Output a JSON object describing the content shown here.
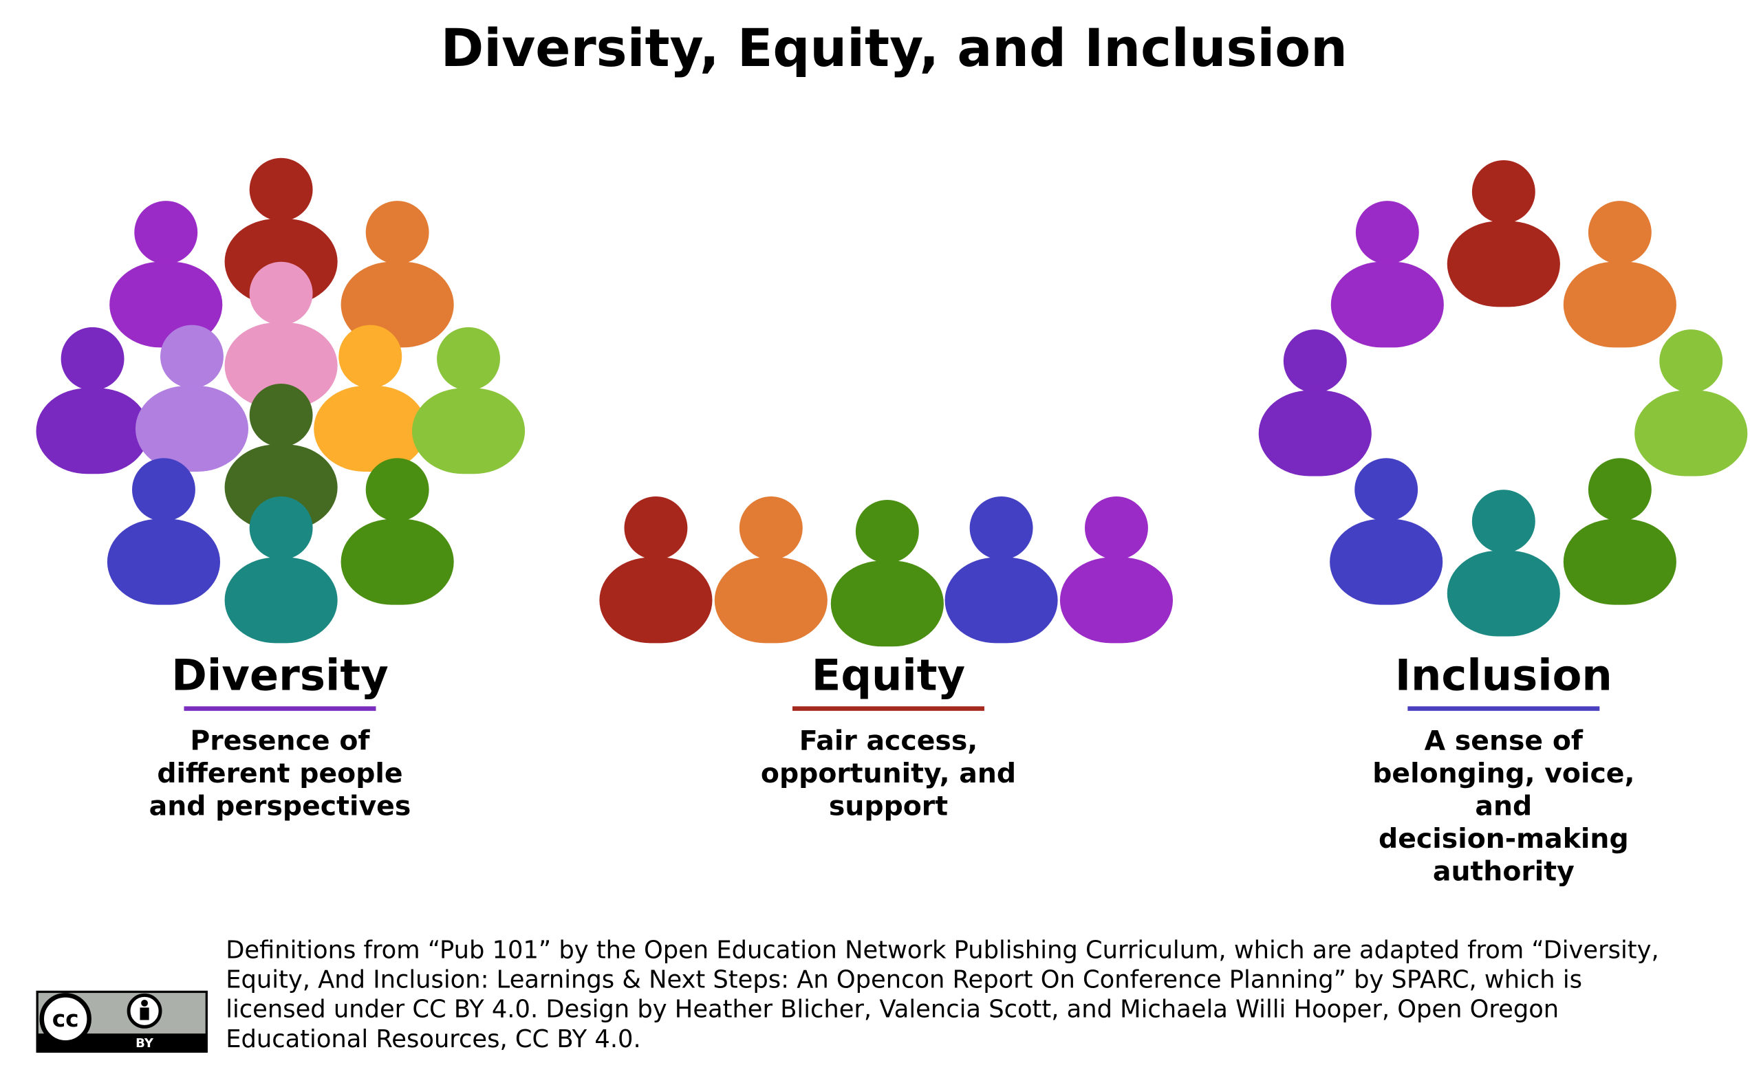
{
  "title": "Diversity, Equity, and Inclusion",
  "sections": [
    {
      "heading": "Diversity",
      "description": [
        "Presence of",
        "different people",
        "and perspectives"
      ]
    },
    {
      "heading": "Equity",
      "description": [
        "Fair access,",
        "opportunity, and",
        "support"
      ]
    },
    {
      "heading": "Inclusion",
      "description": [
        "A sense of",
        "belonging, voice,",
        "and",
        "decision-making",
        "authority"
      ]
    }
  ],
  "footer": [
    "Definitions from “Pub 101” by the Open Education Network Publishing Curriculum, which are adapted from  “Diversity,",
    "Equity, And Inclusion: Learnings & Next Steps: An Opencon Report On Conference Planning” by SPARC, which is",
    "licensed under CC BY 4.0. Design by Heather Blicher, Valencia Scott, and Michaela Willi Hooper, Open Oregon",
    "Educational Resources, CC BY 4.0."
  ],
  "license_badge": {
    "cc": "cc",
    "by": "BY"
  }
}
